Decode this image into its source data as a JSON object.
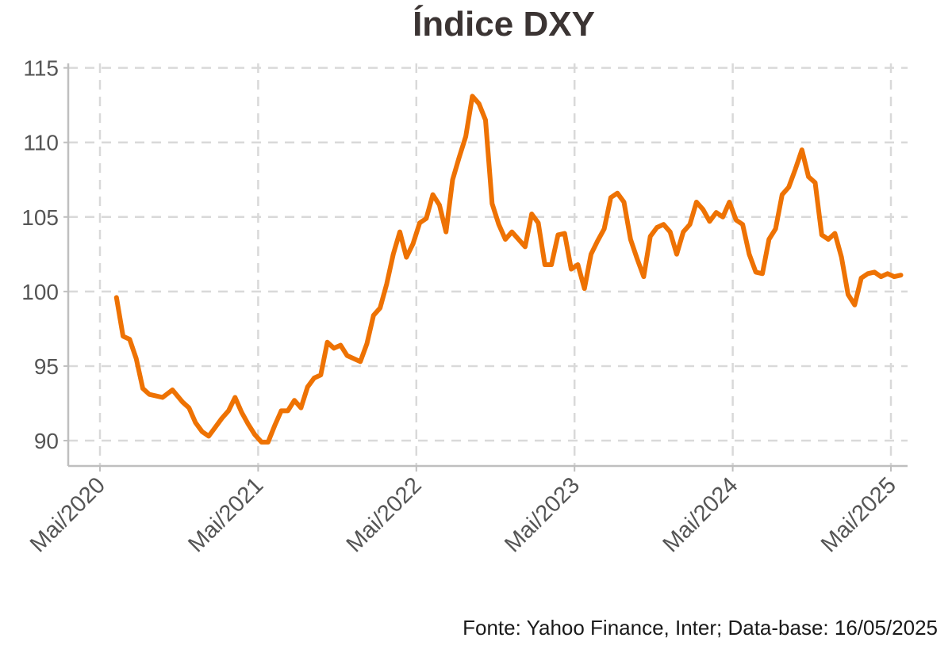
{
  "chart_data": {
    "type": "line",
    "title": "Índice DXY",
    "source": "Fonte: Yahoo Finance, Inter; Data-base: 16/05/2025",
    "xlabel": "",
    "ylabel": "",
    "ylim": [
      88.3,
      115.3
    ],
    "yticks": [
      90,
      95,
      100,
      105,
      110,
      115
    ],
    "xticks": [
      "Mai/2020",
      "Mai/2021",
      "Mai/2022",
      "Mai/2023",
      "Mai/2024",
      "Mai/2025"
    ],
    "grid": true,
    "colors": {
      "line": "#EE7203",
      "grid": "#d9d9d9",
      "axis": "#bfbfbf",
      "text": "#555555"
    },
    "series": [
      {
        "x": [
          "2020-06",
          "2020-06",
          "2020-07",
          "2020-07",
          "2020-08",
          "2020-08",
          "2020-09",
          "2020-09",
          "2020-10",
          "2020-11",
          "2020-11",
          "2020-12",
          "2020-12",
          "2021-01",
          "2021-01",
          "2021-02",
          "2021-02",
          "2021-03",
          "2021-03",
          "2021-04",
          "2021-04",
          "2021-05",
          "2021-05",
          "2021-06",
          "2021-06",
          "2021-07",
          "2021-07",
          "2021-08",
          "2021-08",
          "2021-09",
          "2021-09",
          "2021-10",
          "2021-10",
          "2021-11",
          "2021-11",
          "2021-12",
          "2021-12",
          "2022-01",
          "2022-01",
          "2022-02",
          "2022-02",
          "2022-03",
          "2022-03",
          "2022-04",
          "2022-04",
          "2022-05",
          "2022-05",
          "2022-06",
          "2022-06",
          "2022-07",
          "2022-07",
          "2022-08",
          "2022-08",
          "2022-09",
          "2022-09",
          "2022-10",
          "2022-10",
          "2022-11",
          "2022-11",
          "2022-12",
          "2022-12",
          "2023-01",
          "2023-01",
          "2023-02",
          "2023-02",
          "2023-03",
          "2023-03",
          "2023-04",
          "2023-04",
          "2023-05",
          "2023-05",
          "2023-06",
          "2023-06",
          "2023-07",
          "2023-07",
          "2023-08",
          "2023-08",
          "2023-09",
          "2023-09",
          "2023-10",
          "2023-10",
          "2023-11",
          "2023-11",
          "2023-12",
          "2023-12",
          "2024-01",
          "2024-01",
          "2024-02",
          "2024-02",
          "2024-03",
          "2024-03",
          "2024-04",
          "2024-04",
          "2024-05",
          "2024-05",
          "2024-06",
          "2024-06",
          "2024-07",
          "2024-07",
          "2024-08",
          "2024-08",
          "2024-09",
          "2024-09",
          "2024-10",
          "2024-10",
          "2024-11",
          "2024-11",
          "2024-12",
          "2024-12",
          "2025-01",
          "2025-01",
          "2025-02",
          "2025-02",
          "2025-03",
          "2025-03",
          "2025-04",
          "2025-04",
          "2025-05",
          "2025-05"
        ],
        "values": [
          99.6,
          97.0,
          96.8,
          95.5,
          93.5,
          93.1,
          93.0,
          92.9,
          93.4,
          92.6,
          92.2,
          91.2,
          90.6,
          90.3,
          90.9,
          91.5,
          92.0,
          92.9,
          91.9,
          91.1,
          90.4,
          89.9,
          89.9,
          91.0,
          92.0,
          92.0,
          92.7,
          92.2,
          93.6,
          94.2,
          94.4,
          96.6,
          96.2,
          96.4,
          95.7,
          95.5,
          95.3,
          96.5,
          98.4,
          98.9,
          100.5,
          102.5,
          104.0,
          102.3,
          103.2,
          104.6,
          104.9,
          106.5,
          105.8,
          104.0,
          107.5,
          109.0,
          110.4,
          113.1,
          112.6,
          111.5,
          105.9,
          104.5,
          103.5,
          104.0,
          103.5,
          103.0,
          105.2,
          104.6,
          101.8,
          101.8,
          103.8,
          103.9,
          101.5,
          101.8,
          100.2,
          102.5,
          103.4,
          104.2,
          106.3,
          106.6,
          106.0,
          103.5,
          102.2,
          101.0,
          103.7,
          104.3,
          104.5,
          104.0,
          102.5,
          104.0,
          104.5,
          106.0,
          105.5,
          104.7,
          105.3,
          105.0,
          106.0,
          104.8,
          104.5,
          102.5,
          101.3,
          101.2,
          103.5,
          104.2,
          106.5,
          107.0,
          108.2,
          109.5,
          107.7,
          107.3,
          103.8,
          103.5,
          103.9,
          102.3,
          99.8,
          99.1,
          100.9,
          101.2,
          101.3,
          101.0,
          101.2,
          101.0,
          101.1
        ]
      }
    ]
  }
}
